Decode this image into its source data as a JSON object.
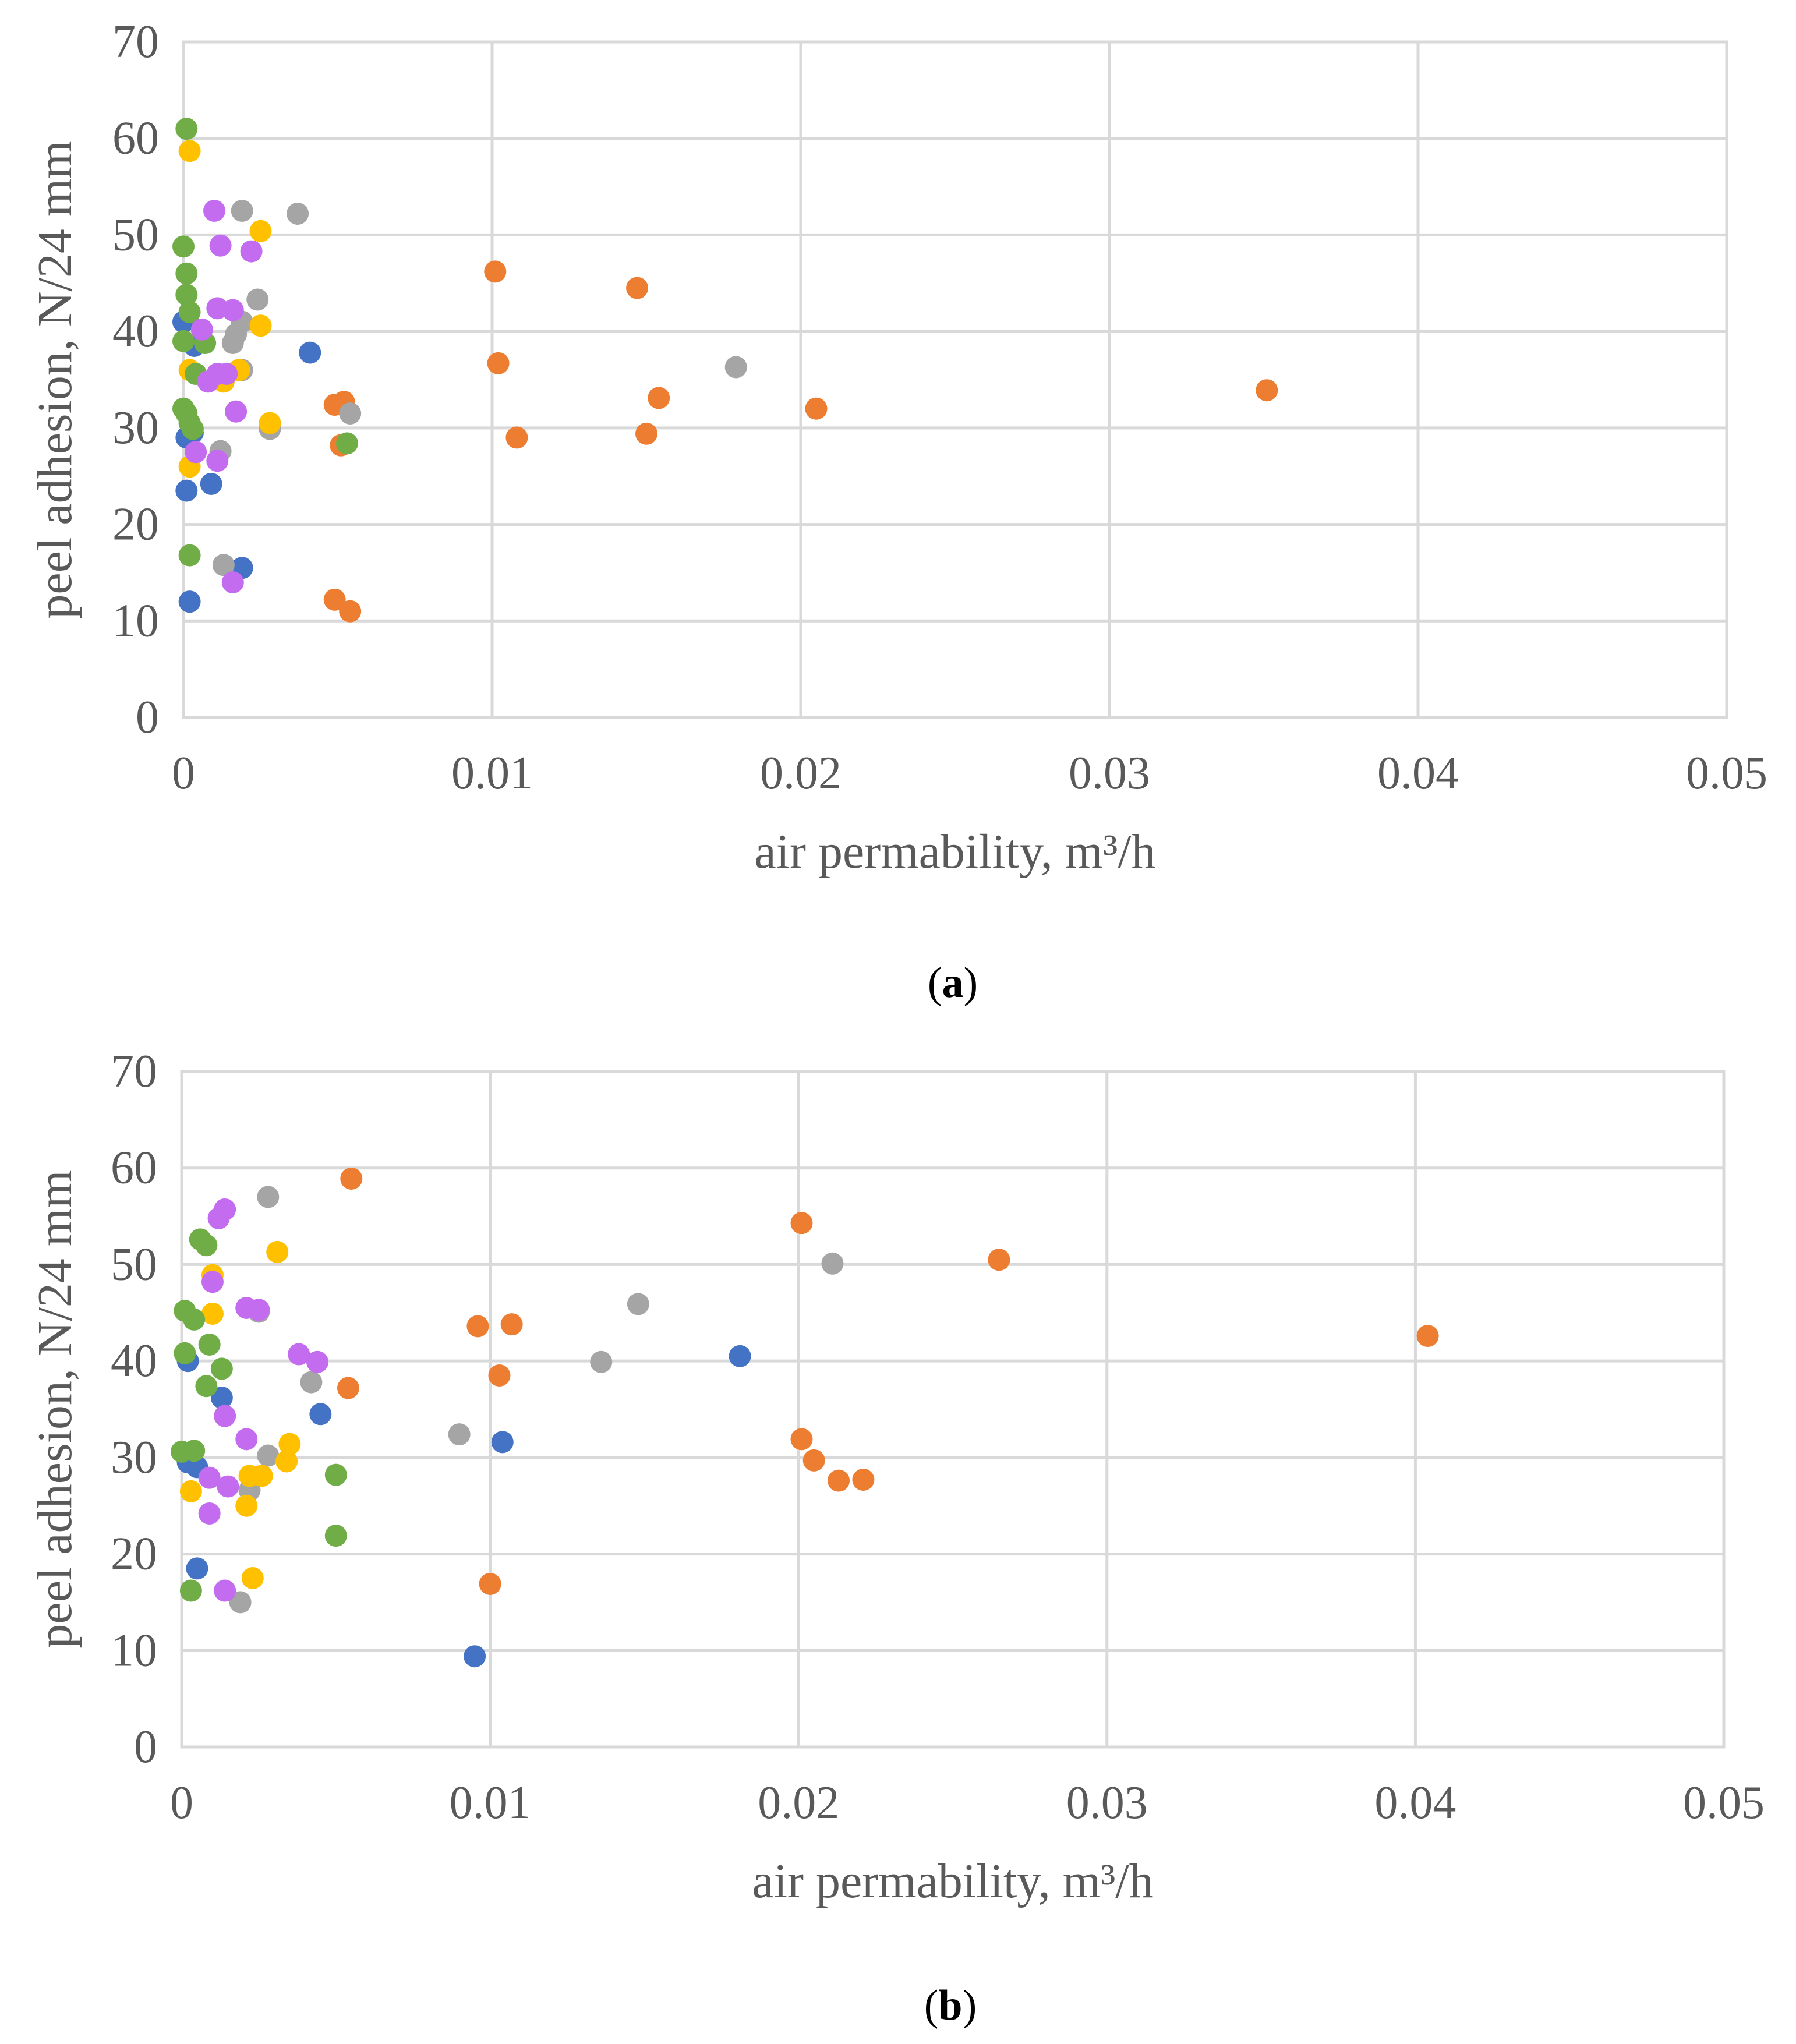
{
  "series_colors": {
    "blue": "#4472c4",
    "orange": "#ed7d31",
    "gray": "#a5a5a5",
    "yellow": "#ffc000",
    "green": "#70ad47",
    "purple": "#c46cf0"
  },
  "chart_data": [
    {
      "type": "scatter",
      "caption_letter": "a",
      "caption": "(a)",
      "xlabel": "air permability, m³/h",
      "ylabel": "peel adhesion, N/24 mm",
      "xlim": [
        0,
        0.05
      ],
      "ylim": [
        0,
        70
      ],
      "xticks": [
        0,
        0.01,
        0.02,
        0.03,
        0.04,
        0.05
      ],
      "xtick_labels": [
        "0",
        "0.01",
        "0.02",
        "0.03",
        "0.04",
        "0.05"
      ],
      "yticks": [
        0,
        10,
        20,
        30,
        40,
        50,
        60,
        70
      ],
      "ytick_labels": [
        "0",
        "10",
        "20",
        "30",
        "40",
        "50",
        "60",
        "70"
      ],
      "grid": true,
      "series": [
        {
          "name": "series-1",
          "color": "blue",
          "points": [
            [
              0.0,
              41
            ],
            [
              0.00035,
              38.5
            ],
            [
              0.0001,
              29
            ],
            [
              0.0003,
              29.5
            ],
            [
              0.0001,
              23.5
            ],
            [
              0.0009,
              24.2
            ],
            [
              0.0002,
              12
            ],
            [
              0.0019,
              15.5
            ],
            [
              0.0041,
              37.8
            ]
          ]
        },
        {
          "name": "series-2",
          "color": "orange",
          "points": [
            [
              0.0101,
              46.2
            ],
            [
              0.0147,
              44.5
            ],
            [
              0.0102,
              36.7
            ],
            [
              0.0049,
              32.4
            ],
            [
              0.0052,
              32.7
            ],
            [
              0.0154,
              33.1
            ],
            [
              0.0205,
              32
            ],
            [
              0.0351,
              33.9
            ],
            [
              0.0108,
              29
            ],
            [
              0.015,
              29.4
            ],
            [
              0.0051,
              28.2
            ],
            [
              0.0049,
              12.2
            ],
            [
              0.0054,
              11
            ]
          ]
        },
        {
          "name": "series-3",
          "color": "gray",
          "points": [
            [
              0.0019,
              52.5
            ],
            [
              0.0037,
              52.2
            ],
            [
              0.0024,
              43.3
            ],
            [
              0.0016,
              38.8
            ],
            [
              0.0017,
              39.7
            ],
            [
              0.0019,
              41
            ],
            [
              0.0019,
              36
            ],
            [
              0.0028,
              29.9
            ],
            [
              0.0054,
              31.5
            ],
            [
              0.0179,
              36.3
            ],
            [
              0.0012,
              27.6
            ],
            [
              0.0013,
              15.8
            ]
          ]
        },
        {
          "name": "series-4",
          "color": "yellow",
          "points": [
            [
              0.0002,
              58.7
            ],
            [
              0.0025,
              50.4
            ],
            [
              0.0025,
              40.6
            ],
            [
              0.0018,
              36
            ],
            [
              0.0002,
              36
            ],
            [
              0.0013,
              34.8
            ],
            [
              0.0028,
              30.5
            ],
            [
              0.0002,
              26
            ]
          ]
        },
        {
          "name": "series-5",
          "color": "green",
          "points": [
            [
              0.0001,
              61
            ],
            [
              0.0,
              48.8
            ],
            [
              0.0001,
              46
            ],
            [
              0.0001,
              43.8
            ],
            [
              0.0002,
              42
            ],
            [
              0.0,
              39
            ],
            [
              0.0007,
              38.8
            ],
            [
              0.0004,
              35.6
            ],
            [
              0.0,
              32
            ],
            [
              0.0001,
              31.5
            ],
            [
              0.0002,
              30.5
            ],
            [
              0.0003,
              29.9
            ],
            [
              0.0053,
              28.4
            ],
            [
              0.0002,
              16.8
            ]
          ]
        },
        {
          "name": "series-6",
          "color": "purple",
          "points": [
            [
              0.001,
              52.5
            ],
            [
              0.0012,
              48.9
            ],
            [
              0.0022,
              48.3
            ],
            [
              0.0011,
              42.4
            ],
            [
              0.0016,
              42.2
            ],
            [
              0.0006,
              40.2
            ],
            [
              0.0008,
              34.8
            ],
            [
              0.0011,
              35.6
            ],
            [
              0.0014,
              35.6
            ],
            [
              0.0017,
              31.7
            ],
            [
              0.0004,
              27.5
            ],
            [
              0.0011,
              26.6
            ],
            [
              0.0016,
              14
            ]
          ]
        }
      ]
    },
    {
      "type": "scatter",
      "caption_letter": "b",
      "caption": "(b)",
      "xlabel": "air permability, m³/h",
      "ylabel": "peel adhesion, N/24 mm",
      "xlim": [
        0,
        0.05
      ],
      "ylim": [
        0,
        70
      ],
      "xticks": [
        0,
        0.01,
        0.02,
        0.03,
        0.04,
        0.05
      ],
      "xtick_labels": [
        "0",
        "0.01",
        "0.02",
        "0.03",
        "0.04",
        "0.05"
      ],
      "yticks": [
        0,
        10,
        20,
        30,
        40,
        50,
        60,
        70
      ],
      "ytick_labels": [
        "0",
        "10",
        "20",
        "30",
        "40",
        "50",
        "60",
        "70"
      ],
      "grid": true,
      "series": [
        {
          "name": "series-1",
          "color": "blue",
          "points": [
            [
              0.0002,
              40
            ],
            [
              0.0013,
              36.2
            ],
            [
              0.0045,
              34.5
            ],
            [
              0.0002,
              29.5
            ],
            [
              0.0005,
              29
            ],
            [
              0.0005,
              18.5
            ],
            [
              0.0095,
              9.4
            ],
            [
              0.0104,
              31.6
            ],
            [
              0.0181,
              40.5
            ]
          ]
        },
        {
          "name": "series-2",
          "color": "orange",
          "points": [
            [
              0.0055,
              58.9
            ],
            [
              0.0201,
              54.3
            ],
            [
              0.0265,
              50.5
            ],
            [
              0.0096,
              43.6
            ],
            [
              0.0107,
              43.8
            ],
            [
              0.0103,
              38.5
            ],
            [
              0.0054,
              37.2
            ],
            [
              0.0201,
              31.9
            ],
            [
              0.0205,
              29.7
            ],
            [
              0.0213,
              27.6
            ],
            [
              0.0221,
              27.7
            ],
            [
              0.01,
              16.9
            ],
            [
              0.0404,
              42.6
            ]
          ]
        },
        {
          "name": "series-3",
          "color": "gray",
          "points": [
            [
              0.0028,
              57
            ],
            [
              0.0211,
              50.1
            ],
            [
              0.0148,
              45.9
            ],
            [
              0.0136,
              39.9
            ],
            [
              0.0025,
              45.1
            ],
            [
              0.0042,
              37.8
            ],
            [
              0.0028,
              30.2
            ],
            [
              0.009,
              32.4
            ],
            [
              0.0022,
              26.6
            ],
            [
              0.0019,
              15
            ]
          ]
        },
        {
          "name": "series-4",
          "color": "yellow",
          "points": [
            [
              0.0031,
              51.3
            ],
            [
              0.001,
              48.9
            ],
            [
              0.001,
              44.9
            ],
            [
              0.0035,
              31.4
            ],
            [
              0.0034,
              29.6
            ],
            [
              0.0022,
              28.1
            ],
            [
              0.0026,
              28.1
            ],
            [
              0.0003,
              26.5
            ],
            [
              0.0021,
              25
            ],
            [
              0.0023,
              17.5
            ]
          ]
        },
        {
          "name": "series-5",
          "color": "green",
          "points": [
            [
              0.0006,
              52.6
            ],
            [
              0.0008,
              52
            ],
            [
              0.0001,
              45.2
            ],
            [
              0.0004,
              44.3
            ],
            [
              0.0009,
              41.7
            ],
            [
              0.0001,
              40.8
            ],
            [
              0.0013,
              39.2
            ],
            [
              0.0008,
              37.4
            ],
            [
              0.0,
              30.6
            ],
            [
              0.0004,
              30.7
            ],
            [
              0.005,
              28.2
            ],
            [
              0.005,
              21.9
            ],
            [
              0.0003,
              16.2
            ]
          ]
        },
        {
          "name": "series-6",
          "color": "purple",
          "points": [
            [
              0.0014,
              55.7
            ],
            [
              0.0012,
              54.8
            ],
            [
              0.001,
              48.2
            ],
            [
              0.0021,
              45.5
            ],
            [
              0.0025,
              45.3
            ],
            [
              0.0038,
              40.7
            ],
            [
              0.0044,
              39.9
            ],
            [
              0.0014,
              34.3
            ],
            [
              0.0021,
              31.9
            ],
            [
              0.0009,
              27.9
            ],
            [
              0.0015,
              27
            ],
            [
              0.0009,
              24.2
            ],
            [
              0.0014,
              16.2
            ]
          ]
        }
      ]
    }
  ]
}
